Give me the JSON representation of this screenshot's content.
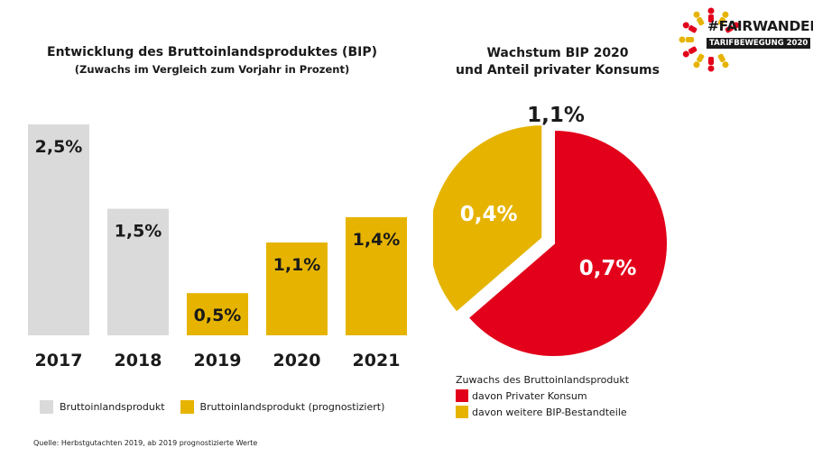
{
  "colors": {
    "actual": "#dadada",
    "forecast": "#e6b400",
    "private": "#e2001a",
    "other": "#e6b400"
  },
  "logo": {
    "line1": "#FAIRWANDEL",
    "line2": "TARIFBEWEGUNG 2020"
  },
  "chart_data": [
    {
      "type": "bar",
      "title": "Entwicklung des Bruttoinlandsproduktes (BIP)",
      "subtitle": "(Zuwachs im Vergleich zum Vorjahr in Prozent)",
      "categories": [
        "2017",
        "2018",
        "2019",
        "2020",
        "2021"
      ],
      "values": [
        2.5,
        1.5,
        0.5,
        1.1,
        1.4
      ],
      "labels": [
        "2,5%",
        "1,5%",
        "0,5%",
        "1,1%",
        "1,4%"
      ],
      "forecast": [
        false,
        false,
        true,
        true,
        true
      ],
      "grid": false,
      "legend": {
        "position": "bottom",
        "items": [
          "Bruttoinlandsprodukt",
          "Bruttoinlandsprodukt (prognostiziert)"
        ]
      }
    },
    {
      "type": "pie",
      "title_lines": [
        "Wachstum BIP 2020",
        "und Anteil privater Konsums"
      ],
      "total_label": "1,1%",
      "slices": [
        {
          "name": "davon Privater Konsum",
          "value": 0.7,
          "label": "0,7%",
          "exploded": false
        },
        {
          "name": "davon weitere BIP-Bestandteile",
          "value": 0.4,
          "label": "0,4%",
          "exploded": true
        }
      ],
      "legend": {
        "position": "bottom",
        "heading": "Zuwachs des Bruttoinlandsprodukt"
      }
    }
  ],
  "source": "Quelle: Herbstgutachten 2019, ab 2019 prognostizierte Werte"
}
